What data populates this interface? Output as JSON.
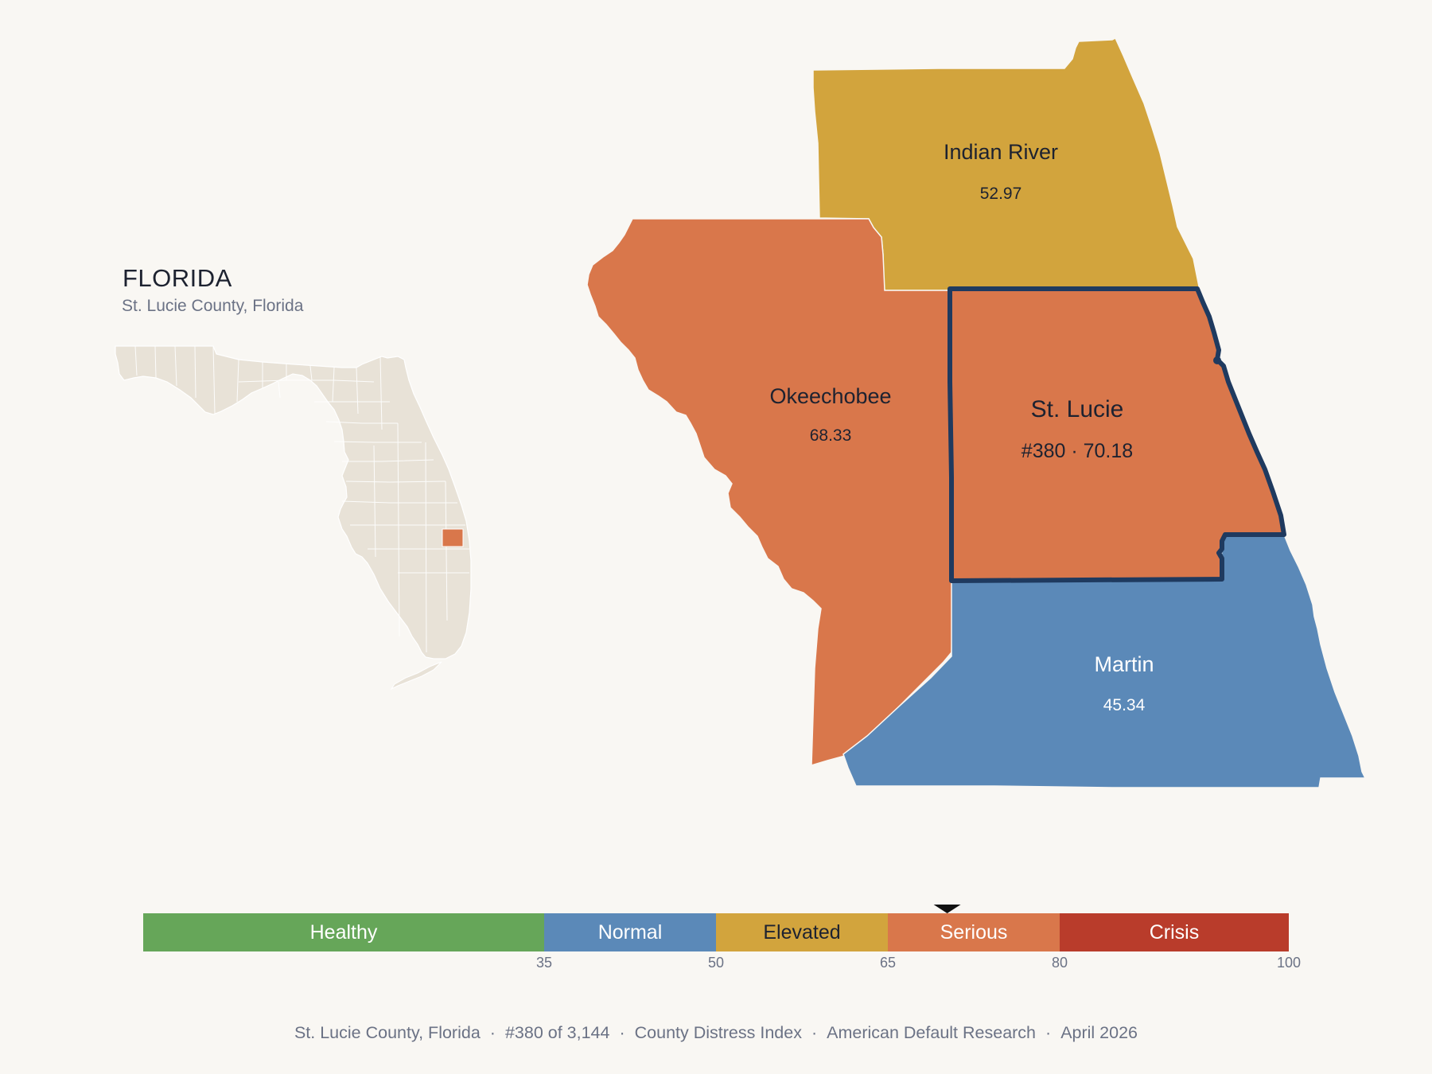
{
  "state": {
    "title": "FLORIDA",
    "subtitle": "St. Lucie County, Florida"
  },
  "counties": {
    "indian_river": {
      "name": "Indian River",
      "value": "52.97",
      "category": "Elevated"
    },
    "okeechobee": {
      "name": "Okeechobee",
      "value": "68.33",
      "category": "Serious"
    },
    "st_lucie": {
      "name": "St. Lucie",
      "label": "#380 · 70.18",
      "rank": 380,
      "value": 70.18,
      "category": "Serious",
      "highlighted": true
    },
    "martin": {
      "name": "Martin",
      "value": "45.34",
      "category": "Normal"
    }
  },
  "legend": {
    "segments": [
      {
        "label": "Healthy",
        "from": 0,
        "to": 35,
        "color": "#66a659"
      },
      {
        "label": "Normal",
        "from": 35,
        "to": 50,
        "color": "#5b89b8"
      },
      {
        "label": "Elevated",
        "from": 50,
        "to": 65,
        "color": "#d2a43d"
      },
      {
        "label": "Serious",
        "from": 65,
        "to": 80,
        "color": "#d9774b"
      },
      {
        "label": "Crisis",
        "from": 80,
        "to": 100,
        "color": "#b93c2b"
      }
    ],
    "ticks": [
      "35",
      "50",
      "65",
      "80",
      "100"
    ],
    "marker_value": 70.18
  },
  "footer": {
    "items": [
      "St. Lucie County, Florida",
      "#380 of 3,144",
      "County Distress Index",
      "American Default Research",
      "April 2026"
    ],
    "separator": "·"
  },
  "colors": {
    "background": "#f9f7f3",
    "state_fill": "#e8e2d7",
    "highlight_outline": "#1f3a5f",
    "elevated": "#d2a43d",
    "serious": "#d9774b",
    "normal": "#5b89b8"
  }
}
